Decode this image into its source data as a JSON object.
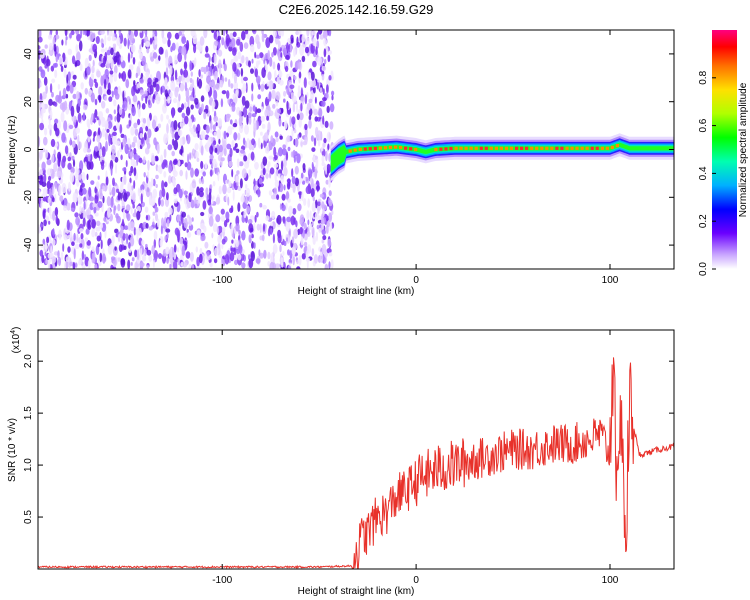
{
  "chart_data": [
    {
      "type": "heatmap",
      "title": "C2E6.2025.142.16.59.G29",
      "xlabel": "Height of straight line (km)",
      "ylabel": "Frequency (Hz)",
      "xlim": [
        -195,
        133
      ],
      "ylim": [
        -50,
        50
      ],
      "x_ticks": [
        -100,
        0,
        100
      ],
      "y_ticks": [
        -40,
        -20,
        0,
        20,
        40
      ],
      "noise_region_x": [
        -195,
        -44
      ],
      "signal_track": {
        "x": [
          -44,
          -40,
          -36,
          -30,
          -20,
          -10,
          0,
          5,
          10,
          20,
          40,
          60,
          80,
          100,
          105,
          110,
          120,
          133
        ],
        "frequency": [
          -6,
          -3,
          -1,
          0,
          0.5,
          1,
          0,
          -1,
          0,
          0.5,
          0.5,
          0.5,
          0.5,
          0.5,
          2,
          0.5,
          0.5,
          0.5
        ]
      },
      "colorbar": {
        "label": "Normalized spectral amplitude",
        "range": [
          0,
          1
        ],
        "ticks": [
          "0.0",
          "0.2",
          "0.4",
          "0.6",
          "0.8"
        ]
      }
    },
    {
      "type": "line",
      "xlabel": "Height of straight line (km)",
      "ylabel": "SNR (10 * v/v)",
      "y_scale_label": "(x10",
      "y_scale_exp": "4",
      "xlim": [
        -195,
        133
      ],
      "ylim": [
        0,
        2.3
      ],
      "x_ticks": [
        -100,
        0,
        100
      ],
      "y_ticks": [
        "0.5",
        "1.0",
        "1.5",
        "2.0"
      ],
      "line_color": "#e8312a",
      "series": [
        {
          "x": [
            -195,
            -150,
            -100,
            -50,
            -33,
            -30,
            -28,
            -25,
            -20,
            -15,
            -10,
            -5,
            0,
            10,
            20,
            30,
            40,
            50,
            60,
            70,
            80,
            90,
            95,
            100,
            102,
            104,
            106,
            108,
            110,
            115,
            120,
            125,
            133
          ],
          "values": [
            0.02,
            0.02,
            0.02,
            0.02,
            0.03,
            0.2,
            0.3,
            0.35,
            0.5,
            0.55,
            0.7,
            0.75,
            0.85,
            0.95,
            1.0,
            1.05,
            1.1,
            1.15,
            1.15,
            1.2,
            1.2,
            1.25,
            1.3,
            1.1,
            2.3,
            0.3,
            1.8,
            0.05,
            1.6,
            1.1,
            1.12,
            1.15,
            1.18
          ]
        }
      ]
    }
  ]
}
